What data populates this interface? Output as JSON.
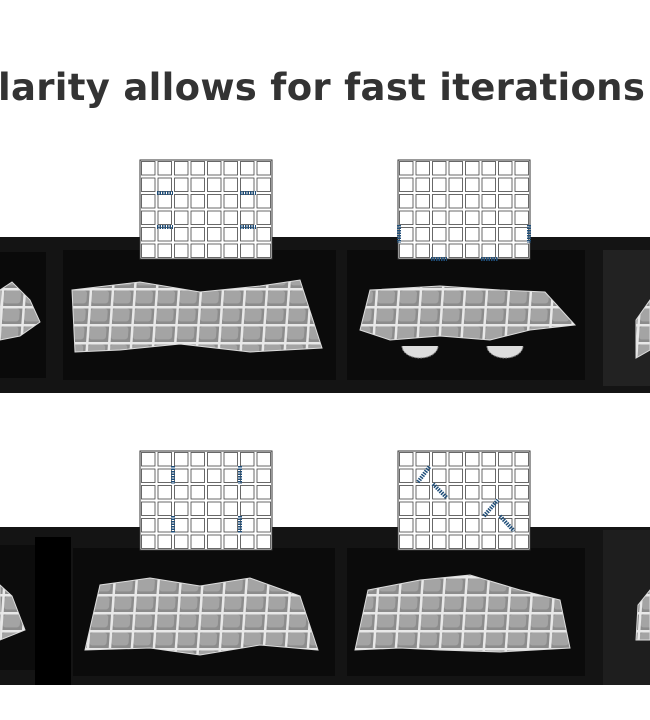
{
  "title": "larity allows for fast iterations of"
}
